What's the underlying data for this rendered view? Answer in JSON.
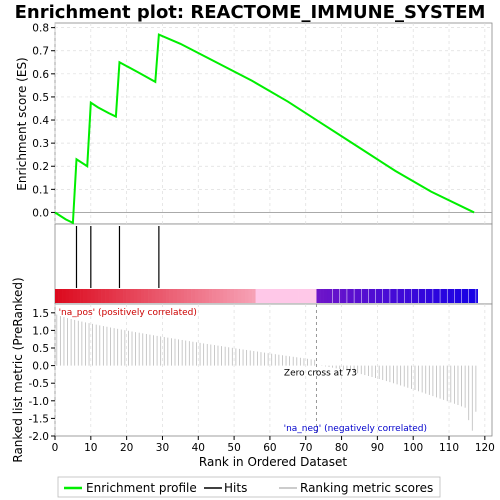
{
  "chart_data": {
    "type": "line",
    "title": "Enrichment plot: REACTOME_IMMUNE_SYSTEM",
    "panels": {
      "enrichment": {
        "ylabel": "Enrichment score (ES)",
        "ylim": [
          -0.05,
          0.82
        ],
        "yticks": [
          "0.0",
          "0.1",
          "0.2",
          "0.3",
          "0.4",
          "0.5",
          "0.6",
          "0.7",
          "0.8"
        ],
        "ytick_values": [
          0,
          0.1,
          0.2,
          0.3,
          0.4,
          0.5,
          0.6,
          0.7,
          0.8
        ],
        "series_color": "#00ee00",
        "points": [
          [
            0,
            0
          ],
          [
            1,
            -0.01
          ],
          [
            3,
            -0.03
          ],
          [
            5,
            -0.045
          ],
          [
            6,
            0.23
          ],
          [
            9,
            0.2
          ],
          [
            10,
            0.475
          ],
          [
            12,
            0.455
          ],
          [
            15,
            0.43
          ],
          [
            17,
            0.415
          ],
          [
            18,
            0.65
          ],
          [
            21,
            0.625
          ],
          [
            24,
            0.6
          ],
          [
            28,
            0.565
          ],
          [
            29,
            0.77
          ],
          [
            35,
            0.73
          ],
          [
            45,
            0.65
          ],
          [
            55,
            0.57
          ],
          [
            65,
            0.48
          ],
          [
            75,
            0.38
          ],
          [
            85,
            0.28
          ],
          [
            95,
            0.18
          ],
          [
            105,
            0.09
          ],
          [
            117,
            0.0
          ]
        ]
      },
      "hits": {
        "positions": [
          6,
          10,
          18,
          29
        ]
      },
      "metric": {
        "ylabel": "Ranked list metric (PreRanked)",
        "ylim": [
          -2.0,
          1.75
        ],
        "yticks": [
          "-2.0",
          "-1.5",
          "-1.0",
          "-0.5",
          "0.0",
          "0.5",
          "1.0",
          "1.5"
        ],
        "ytick_values": [
          -2,
          -1.5,
          -1,
          -0.5,
          0,
          0.5,
          1,
          1.5
        ],
        "zero_cross": 73,
        "zero_cross_label": "Zero cross at 73",
        "pos_label": "'na_pos' (positively correlated)",
        "neg_label": "'na_neg' (negatively correlated)",
        "pos_color": "#cc0000",
        "neg_color": "#0000cc"
      },
      "xaxis": {
        "xlabel": "Rank in Ordered Dataset",
        "xlim": [
          0,
          122
        ],
        "xticks": [
          "0",
          "10",
          "20",
          "30",
          "40",
          "50",
          "60",
          "70",
          "80",
          "90",
          "100",
          "110",
          "120"
        ],
        "xtick_values": [
          0,
          10,
          20,
          30,
          40,
          50,
          60,
          70,
          80,
          90,
          100,
          110,
          120
        ],
        "n_genes": 118
      }
    },
    "legend": {
      "position": "bottom",
      "items": [
        {
          "label": "Enrichment profile",
          "color": "#00ee00"
        },
        {
          "label": "Hits",
          "color": "#000000"
        },
        {
          "label": "Ranking metric scores",
          "color": "#bbbbbb"
        }
      ]
    }
  }
}
